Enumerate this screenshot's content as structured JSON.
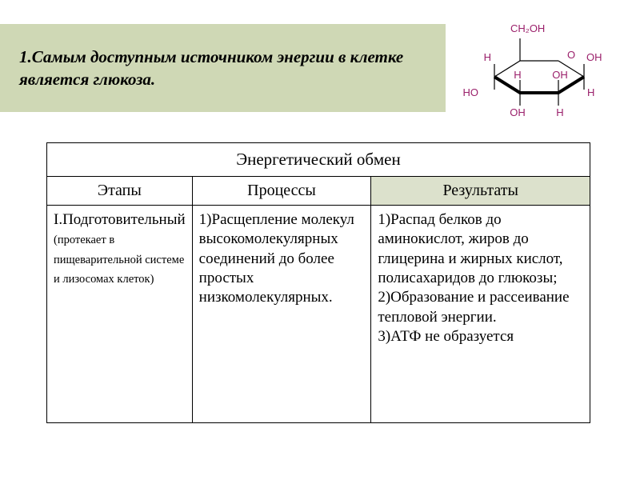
{
  "header": {
    "text": "1.Самым доступным источником энергии в клетке является глюкоза."
  },
  "molecule": {
    "labels": {
      "top": "CH₂OH",
      "oh": "OH",
      "ho": "HO",
      "h": "H",
      "o": "O"
    },
    "colors": {
      "text": "#9a1f6a",
      "bond": "#000000"
    }
  },
  "table": {
    "title": "Энергетический обмен",
    "headers": {
      "stages": "Этапы",
      "processes": "Процессы",
      "results": "Результаты"
    },
    "header_bg_results": "#dce1cc",
    "rows": [
      {
        "stage_title": "I.Подготовительный",
        "stage_note": "(протекает в пищеварительной системе и лизосомах клеток)",
        "process": "1)Расщепление молекул высокомолекулярных соединений до более простых низкомолекулярных.",
        "result": "1)Распад белков до аминокислот, жиров до глицерина и жирных кислот, полисахаридов до глюкозы;\n2)Образование и рассеивание тепловой энергии.\n3)АТФ не образуется"
      }
    ],
    "border_color": "#000000"
  }
}
